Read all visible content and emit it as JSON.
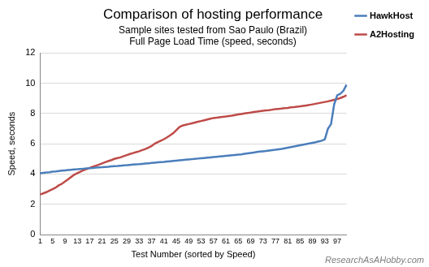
{
  "chart_data": {
    "type": "line",
    "title": "Comparison of hosting performance",
    "subtitle": [
      "Sample sites tested from Sao Paulo (Brazil)",
      "Full Page Load Time (speed, seconds)"
    ],
    "x_label": "Test Number (sorted by Speed)",
    "y_label": "Speed, seconds",
    "annotations": [
      "ResearchAsAHobby.com"
    ],
    "categories": [
      "1",
      null,
      null,
      null,
      "5",
      null,
      null,
      null,
      "9",
      null,
      null,
      null,
      "13",
      null,
      null,
      null,
      "17",
      null,
      null,
      null,
      "21",
      null,
      null,
      null,
      "25",
      null,
      null,
      null,
      "29",
      null,
      null,
      null,
      "33",
      null,
      null,
      null,
      "37",
      null,
      null,
      null,
      "41",
      null,
      null,
      null,
      "45",
      null,
      null,
      null,
      "49",
      null,
      null,
      null,
      "53",
      null,
      null,
      null,
      "57",
      null,
      null,
      null,
      "61",
      null,
      null,
      null,
      "65",
      null,
      null,
      null,
      "69",
      null,
      null,
      null,
      "73",
      null,
      null,
      null,
      "77",
      null,
      null,
      null,
      "81",
      null,
      null,
      null,
      "85",
      null,
      null,
      null,
      "89",
      null,
      null,
      null,
      "93",
      null,
      null,
      null,
      "97",
      null,
      null,
      null
    ],
    "series": [
      {
        "name": "HawkHost",
        "color": "#4a7ebb",
        "values": [
          4.05,
          4.08,
          4.1,
          4.12,
          4.15,
          4.17,
          4.2,
          4.22,
          4.24,
          4.26,
          4.28,
          4.3,
          4.31,
          4.33,
          4.35,
          4.37,
          4.39,
          4.4,
          4.42,
          4.44,
          4.45,
          4.47,
          4.48,
          4.5,
          4.52,
          4.53,
          4.55,
          4.57,
          4.58,
          4.6,
          4.62,
          4.64,
          4.65,
          4.67,
          4.69,
          4.71,
          4.73,
          4.75,
          4.77,
          4.79,
          4.8,
          4.82,
          4.84,
          4.86,
          4.88,
          4.9,
          4.92,
          4.94,
          4.96,
          4.98,
          5.0,
          5.02,
          5.04,
          5.06,
          5.08,
          5.1,
          5.12,
          5.14,
          5.16,
          5.18,
          5.2,
          5.22,
          5.24,
          5.26,
          5.28,
          5.3,
          5.33,
          5.36,
          5.39,
          5.42,
          5.45,
          5.48,
          5.5,
          5.52,
          5.55,
          5.58,
          5.6,
          5.63,
          5.66,
          5.7,
          5.74,
          5.78,
          5.82,
          5.86,
          5.9,
          5.94,
          5.98,
          6.02,
          6.06,
          6.1,
          6.15,
          6.2,
          6.3,
          7.0,
          7.3,
          8.6,
          9.2,
          9.3,
          9.5,
          9.9
        ]
      },
      {
        "name": "A2Hosting",
        "color": "#be4b48",
        "values": [
          2.65,
          2.72,
          2.8,
          2.9,
          3.0,
          3.1,
          3.25,
          3.35,
          3.5,
          3.65,
          3.8,
          3.95,
          4.05,
          4.15,
          4.25,
          4.32,
          4.4,
          4.48,
          4.55,
          4.62,
          4.7,
          4.78,
          4.85,
          4.92,
          5.0,
          5.05,
          5.1,
          5.18,
          5.25,
          5.32,
          5.38,
          5.44,
          5.5,
          5.58,
          5.65,
          5.75,
          5.85,
          6.0,
          6.1,
          6.2,
          6.3,
          6.42,
          6.55,
          6.7,
          6.9,
          7.1,
          7.2,
          7.25,
          7.3,
          7.35,
          7.4,
          7.45,
          7.5,
          7.55,
          7.6,
          7.65,
          7.7,
          7.72,
          7.75,
          7.78,
          7.8,
          7.83,
          7.86,
          7.9,
          7.93,
          7.96,
          8.0,
          8.03,
          8.06,
          8.1,
          8.12,
          8.15,
          8.18,
          8.2,
          8.22,
          8.25,
          8.28,
          8.3,
          8.32,
          8.35,
          8.37,
          8.4,
          8.42,
          8.45,
          8.47,
          8.5,
          8.53,
          8.56,
          8.6,
          8.64,
          8.68,
          8.72,
          8.76,
          8.8,
          8.85,
          8.9,
          8.95,
          9.02,
          9.1,
          9.2
        ]
      }
    ],
    "ylim": [
      0,
      12
    ],
    "yticks": [
      0,
      2,
      4,
      6,
      8,
      10,
      12
    ],
    "grid": true,
    "legend": "right"
  }
}
